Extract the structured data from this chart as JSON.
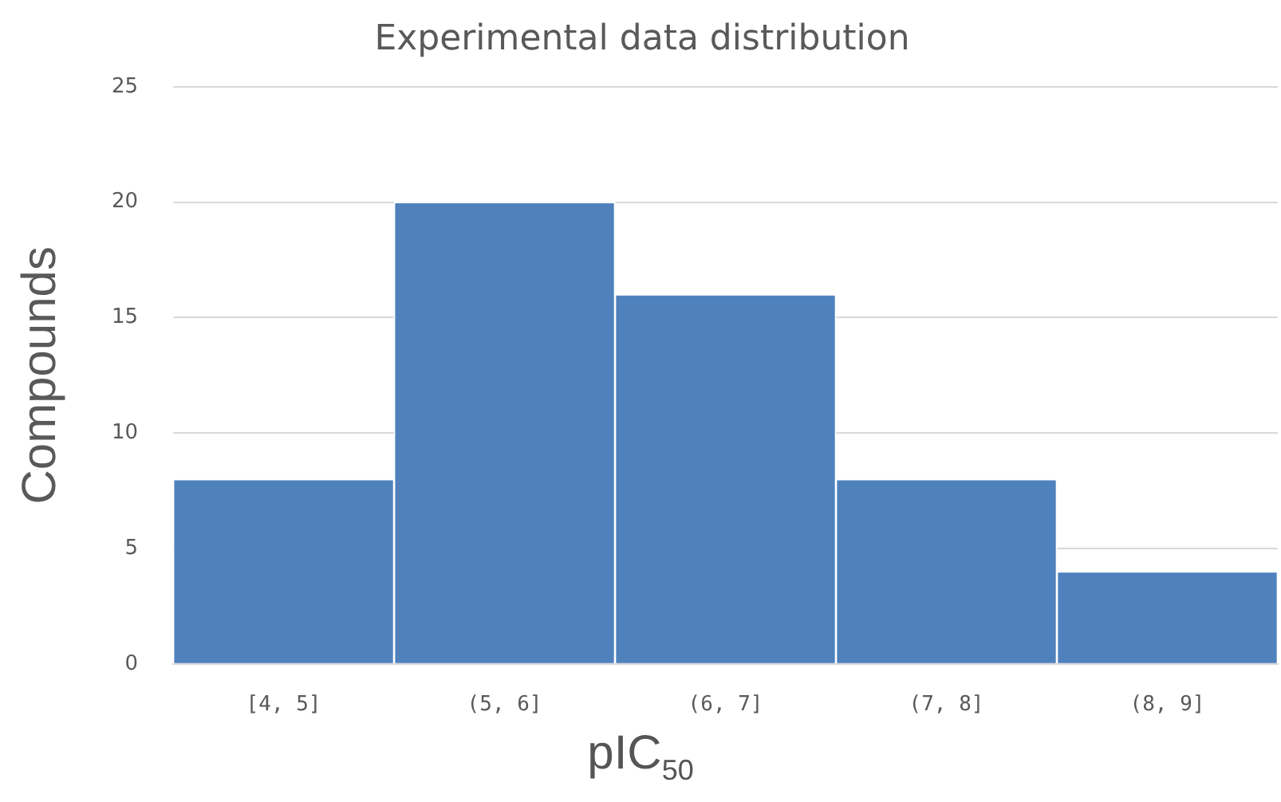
{
  "chart_data": {
    "type": "bar",
    "title": "Experimental data distribution",
    "xlabel": "pIC$_{50}$",
    "ylabel": "Compounds",
    "categories": [
      "[4, 5]",
      "(5, 6]",
      "(6, 7]",
      "(7, 8]",
      "(8, 9]"
    ],
    "values": [
      8,
      20,
      16,
      8,
      4
    ],
    "color": "#4f81bd",
    "ylim": [
      0,
      25
    ],
    "yticks": [
      0,
      5,
      10,
      15,
      20,
      25
    ],
    "grid": "y",
    "legend": false
  }
}
